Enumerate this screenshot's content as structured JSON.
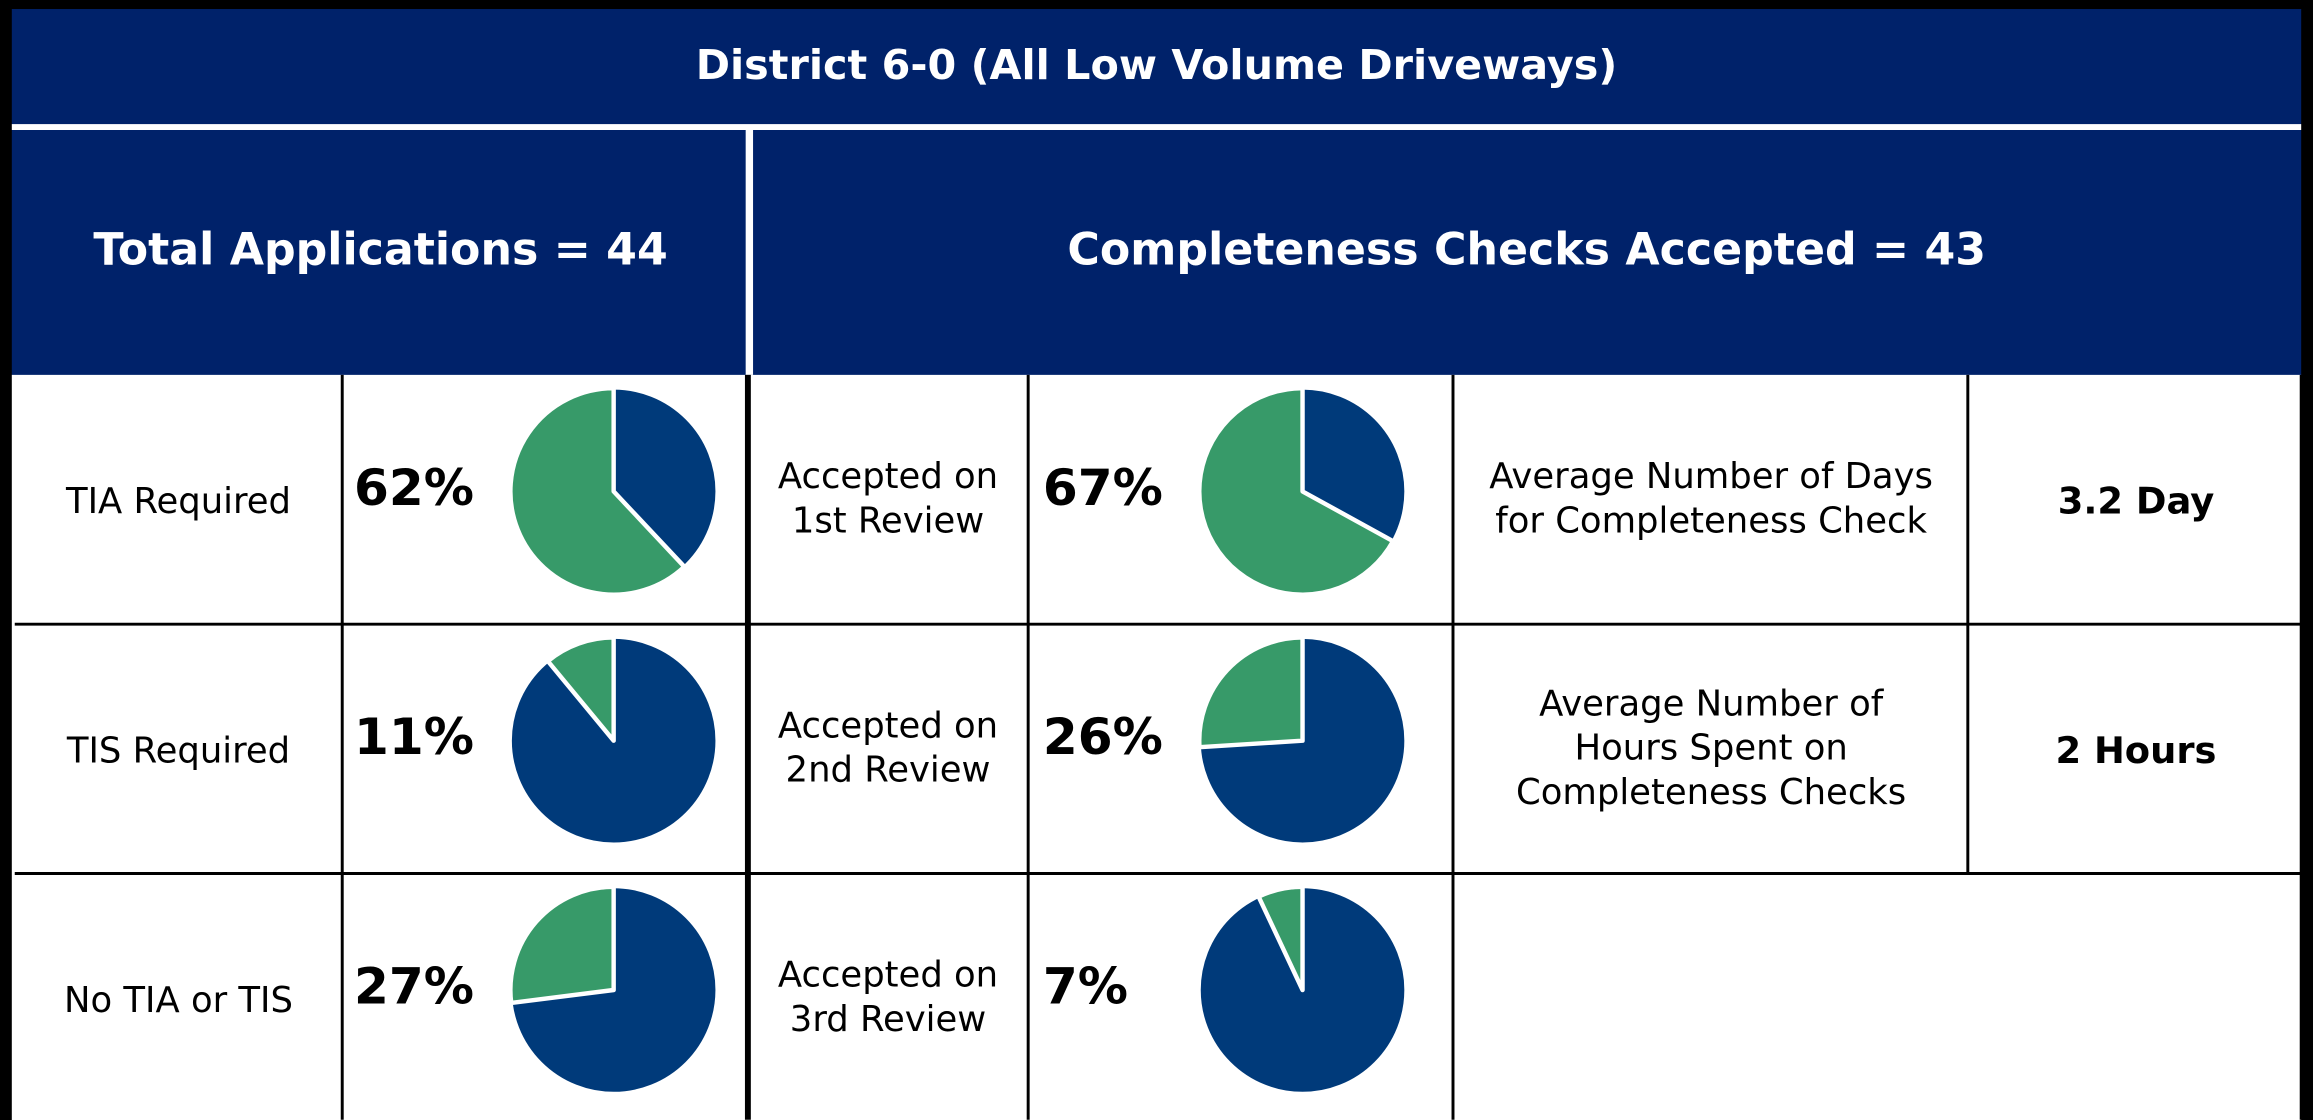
{
  "title": "District 6-0 (All Low Volume Driveways)",
  "left_header": "Total Applications = 44",
  "right_header": "Completeness Checks Accepted = 43",
  "colors": {
    "share": "#379a69",
    "rest": "#003a7a",
    "band": "#00226a"
  },
  "applications": [
    {
      "label": [
        "TIA Required"
      ],
      "percent": {
        "value": 62,
        "label": "62%"
      }
    },
    {
      "label": [
        "TIS Required"
      ],
      "percent": {
        "value": 11,
        "label": "11%"
      }
    },
    {
      "label": [
        "No TIA or TIS"
      ],
      "percent": {
        "value": 27,
        "label": "27%"
      }
    }
  ],
  "reviews": [
    {
      "label": [
        "Accepted on",
        "1st Review"
      ],
      "percent": {
        "value": 67,
        "label": "67%"
      }
    },
    {
      "label": [
        "Accepted on",
        "2nd Review"
      ],
      "percent": {
        "value": 26,
        "label": "26%"
      }
    },
    {
      "label": [
        "Accepted on",
        "3rd Review"
      ],
      "percent": {
        "value": 7,
        "label": "7%"
      }
    }
  ],
  "stats": [
    {
      "label": [
        "Average Number of Days",
        "for Completeness Check"
      ],
      "value": "3.2 Day"
    },
    {
      "label": [
        "Average Number of",
        "Hours Spent on",
        "Completeness Checks"
      ],
      "value": "2 Hours"
    }
  ]
}
